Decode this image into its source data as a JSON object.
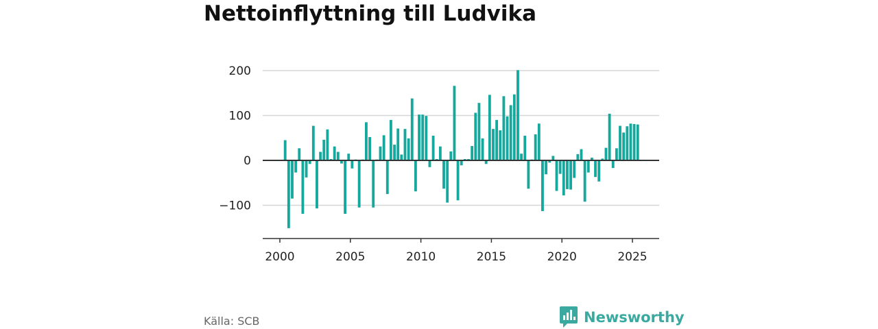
{
  "chart_data": {
    "type": "bar",
    "title": "Nettoinflyttning till Ludvika",
    "xlabel": "",
    "ylabel": "",
    "color": "#16a89d",
    "xlim": [
      1999.5,
      2026.8
    ],
    "ylim": [
      -175,
      210
    ],
    "yticks": [
      200,
      100,
      0,
      -100
    ],
    "ytick_labels": [
      "200",
      "100",
      "0",
      "−100"
    ],
    "xticks": [
      2000,
      2005,
      2010,
      2015,
      2020,
      2025
    ],
    "xtick_labels": [
      "2000",
      "2005",
      "2010",
      "2015",
      "2020",
      "2025"
    ],
    "grid": true,
    "x_start": 2000.375,
    "x_step": 0.25,
    "values": [
      45,
      -151,
      -85,
      -27,
      27,
      -119,
      -38,
      -8,
      77,
      -107,
      19,
      46,
      69,
      3,
      31,
      19,
      -7,
      -119,
      15,
      -18,
      2,
      -105,
      2,
      85,
      52,
      -105,
      2,
      31,
      56,
      -75,
      90,
      35,
      71,
      13,
      70,
      49,
      138,
      -69,
      102,
      102,
      99,
      -15,
      55,
      3,
      31,
      -63,
      -94,
      20,
      166,
      -89,
      -11,
      3,
      3,
      32,
      106,
      128,
      49,
      -8,
      146,
      70,
      90,
      67,
      143,
      98,
      123,
      147,
      201,
      15,
      55,
      -63,
      2,
      58,
      82,
      -113,
      -31,
      -5,
      10,
      -68,
      -30,
      -78,
      -64,
      -65,
      -39,
      14,
      25,
      -92,
      -27,
      6,
      -37,
      -47,
      4,
      28,
      104,
      -17,
      27,
      77,
      62,
      76,
      82,
      81,
      80
    ]
  },
  "source": "Källa: SCB",
  "brand": {
    "name": "Newsworthy",
    "color": "#3aa9a0"
  }
}
